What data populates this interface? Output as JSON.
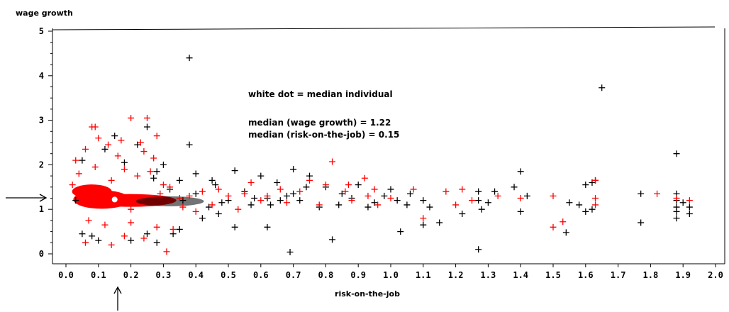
{
  "chart_data": {
    "type": "scatter",
    "title": "",
    "xlabel": "risk-on-the-job",
    "ylabel": "wage growth",
    "xlim": [
      0.0,
      2.0
    ],
    "ylim": [
      0,
      5
    ],
    "x_ticks": [
      "0.0",
      "0.1",
      "0.2",
      "0.3",
      "0.4",
      "0.5",
      "0.6",
      "0.7",
      "0.8",
      "0.9",
      "1.0",
      "1.1",
      "1.2",
      "1.3",
      "1.4",
      "1.5",
      "1.6",
      "1.7",
      "1.8",
      "1.9",
      "2.0"
    ],
    "y_ticks": [
      "0",
      "1",
      "2",
      "3",
      "4",
      "5"
    ],
    "grid": false,
    "marker": "plus",
    "annotations": [
      "white dot  = median individual",
      "median (wage growth) = 1.22",
      "median (risk-on-the-job) = 0.15"
    ],
    "median_point": {
      "x": 0.15,
      "y": 1.22
    },
    "series": [
      {
        "color": "#000000",
        "points": [
          [
            0.38,
            4.4
          ],
          [
            1.65,
            3.73
          ],
          [
            0.25,
            2.85
          ],
          [
            0.15,
            2.65
          ],
          [
            0.38,
            2.45
          ],
          [
            0.22,
            2.45
          ],
          [
            0.12,
            2.35
          ],
          [
            0.05,
            2.1
          ],
          [
            0.18,
            2.05
          ],
          [
            0.3,
            2.0
          ],
          [
            0.28,
            1.85
          ],
          [
            0.52,
            1.87
          ],
          [
            0.7,
            1.9
          ],
          [
            0.4,
            1.8
          ],
          [
            0.6,
            1.75
          ],
          [
            0.75,
            1.75
          ],
          [
            0.45,
            1.65
          ],
          [
            0.65,
            1.6
          ],
          [
            0.9,
            1.55
          ],
          [
            0.8,
            1.5
          ],
          [
            1.0,
            1.45
          ],
          [
            0.85,
            1.35
          ],
          [
            0.72,
            1.2
          ],
          [
            0.78,
            1.05
          ],
          [
            0.95,
            1.15
          ],
          [
            1.05,
            1.1
          ],
          [
            1.1,
            1.2
          ],
          [
            1.12,
            1.05
          ],
          [
            1.15,
            0.7
          ],
          [
            1.1,
            0.65
          ],
          [
            1.22,
            0.9
          ],
          [
            1.27,
            1.4
          ],
          [
            1.27,
            1.2
          ],
          [
            1.28,
            1.0
          ],
          [
            1.3,
            1.15
          ],
          [
            1.32,
            1.4
          ],
          [
            1.38,
            1.5
          ],
          [
            1.4,
            1.85
          ],
          [
            1.4,
            0.95
          ],
          [
            1.42,
            1.3
          ],
          [
            1.54,
            0.48
          ],
          [
            1.55,
            1.15
          ],
          [
            1.58,
            1.1
          ],
          [
            1.6,
            0.95
          ],
          [
            1.6,
            1.55
          ],
          [
            1.62,
            1.6
          ],
          [
            1.62,
            1.0
          ],
          [
            1.63,
            1.65
          ],
          [
            1.77,
            1.35
          ],
          [
            1.77,
            0.7
          ],
          [
            1.88,
            2.25
          ],
          [
            1.88,
            1.35
          ],
          [
            1.88,
            1.2
          ],
          [
            1.88,
            1.05
          ],
          [
            1.88,
            0.95
          ],
          [
            1.88,
            0.8
          ],
          [
            1.9,
            1.15
          ],
          [
            1.92,
            1.05
          ],
          [
            1.92,
            0.9
          ],
          [
            1.27,
            0.1
          ],
          [
            0.69,
            0.04
          ],
          [
            0.82,
            0.32
          ],
          [
            1.03,
            0.5
          ],
          [
            0.52,
            0.6
          ],
          [
            0.62,
            0.6
          ],
          [
            0.57,
            1.1
          ],
          [
            0.62,
            1.25
          ],
          [
            0.68,
            1.3
          ],
          [
            0.48,
            1.15
          ],
          [
            0.55,
            1.4
          ],
          [
            0.47,
            0.9
          ],
          [
            0.42,
            0.8
          ],
          [
            0.35,
            0.55
          ],
          [
            0.28,
            0.25
          ],
          [
            0.2,
            0.3
          ],
          [
            0.1,
            0.3
          ],
          [
            0.05,
            0.45
          ],
          [
            0.08,
            0.4
          ],
          [
            0.33,
            0.45
          ],
          [
            0.25,
            0.45
          ],
          [
            0.32,
            1.45
          ],
          [
            0.36,
            1.2
          ],
          [
            0.44,
            1.05
          ],
          [
            0.4,
            1.35
          ],
          [
            0.5,
            1.2
          ],
          [
            0.58,
            1.25
          ],
          [
            0.63,
            1.1
          ],
          [
            0.66,
            1.2
          ],
          [
            0.7,
            1.35
          ],
          [
            0.84,
            1.1
          ],
          [
            0.88,
            1.25
          ],
          [
            0.93,
            1.05
          ],
          [
            0.98,
            1.3
          ],
          [
            1.02,
            1.2
          ],
          [
            1.06,
            1.35
          ],
          [
            0.74,
            1.5
          ],
          [
            0.46,
            1.55
          ],
          [
            0.35,
            1.65
          ],
          [
            0.27,
            1.7
          ],
          [
            0.03,
            1.2
          ]
        ]
      },
      {
        "color": "#ff0000",
        "points": [
          [
            0.2,
            3.05
          ],
          [
            0.25,
            3.05
          ],
          [
            0.08,
            2.85
          ],
          [
            0.09,
            2.85
          ],
          [
            0.28,
            2.65
          ],
          [
            0.1,
            2.6
          ],
          [
            0.17,
            2.55
          ],
          [
            0.23,
            2.5
          ],
          [
            0.13,
            2.45
          ],
          [
            0.06,
            2.35
          ],
          [
            0.03,
            2.1
          ],
          [
            0.16,
            2.2
          ],
          [
            0.24,
            2.3
          ],
          [
            0.27,
            2.15
          ],
          [
            0.82,
            2.07
          ],
          [
            0.92,
            1.7
          ],
          [
            0.57,
            1.6
          ],
          [
            0.75,
            1.65
          ],
          [
            0.87,
            1.55
          ],
          [
            0.8,
            1.55
          ],
          [
            0.95,
            1.45
          ],
          [
            1.07,
            1.45
          ],
          [
            1.17,
            1.4
          ],
          [
            1.22,
            1.45
          ],
          [
            1.33,
            1.3
          ],
          [
            1.4,
            1.25
          ],
          [
            1.5,
            1.3
          ],
          [
            1.63,
            1.65
          ],
          [
            1.63,
            1.25
          ],
          [
            1.63,
            1.1
          ],
          [
            1.82,
            1.35
          ],
          [
            1.88,
            1.25
          ],
          [
            1.92,
            1.2
          ],
          [
            1.5,
            0.6
          ],
          [
            1.53,
            0.72
          ],
          [
            1.1,
            0.8
          ],
          [
            0.96,
            1.1
          ],
          [
            0.88,
            1.2
          ],
          [
            0.86,
            1.4
          ],
          [
            0.72,
            1.4
          ],
          [
            0.66,
            1.45
          ],
          [
            0.62,
            1.3
          ],
          [
            0.55,
            1.35
          ],
          [
            0.5,
            1.3
          ],
          [
            0.47,
            1.45
          ],
          [
            0.42,
            1.4
          ],
          [
            0.38,
            1.3
          ],
          [
            0.35,
            1.25
          ],
          [
            0.32,
            1.5
          ],
          [
            0.3,
            1.55
          ],
          [
            0.33,
            0.55
          ],
          [
            0.31,
            0.05
          ],
          [
            0.14,
            0.2
          ],
          [
            0.06,
            0.25
          ],
          [
            0.18,
            0.4
          ],
          [
            0.24,
            0.35
          ],
          [
            0.12,
            0.65
          ],
          [
            0.2,
            0.7
          ],
          [
            0.28,
            0.6
          ],
          [
            0.07,
            0.75
          ],
          [
            1.2,
            1.1
          ],
          [
            1.25,
            1.2
          ],
          [
            1.0,
            1.25
          ],
          [
            0.93,
            1.3
          ],
          [
            0.78,
            1.1
          ],
          [
            0.68,
            1.15
          ],
          [
            0.6,
            1.2
          ],
          [
            0.53,
            1.0
          ],
          [
            0.45,
            1.1
          ],
          [
            0.4,
            0.95
          ],
          [
            0.36,
            1.05
          ],
          [
            0.04,
            1.8
          ],
          [
            0.02,
            1.55
          ],
          [
            0.09,
            1.95
          ],
          [
            0.18,
            1.9
          ],
          [
            0.26,
            1.85
          ],
          [
            0.22,
            1.75
          ],
          [
            0.14,
            1.65
          ],
          [
            0.29,
            1.35
          ],
          [
            0.2,
            1.0
          ]
        ]
      }
    ]
  }
}
